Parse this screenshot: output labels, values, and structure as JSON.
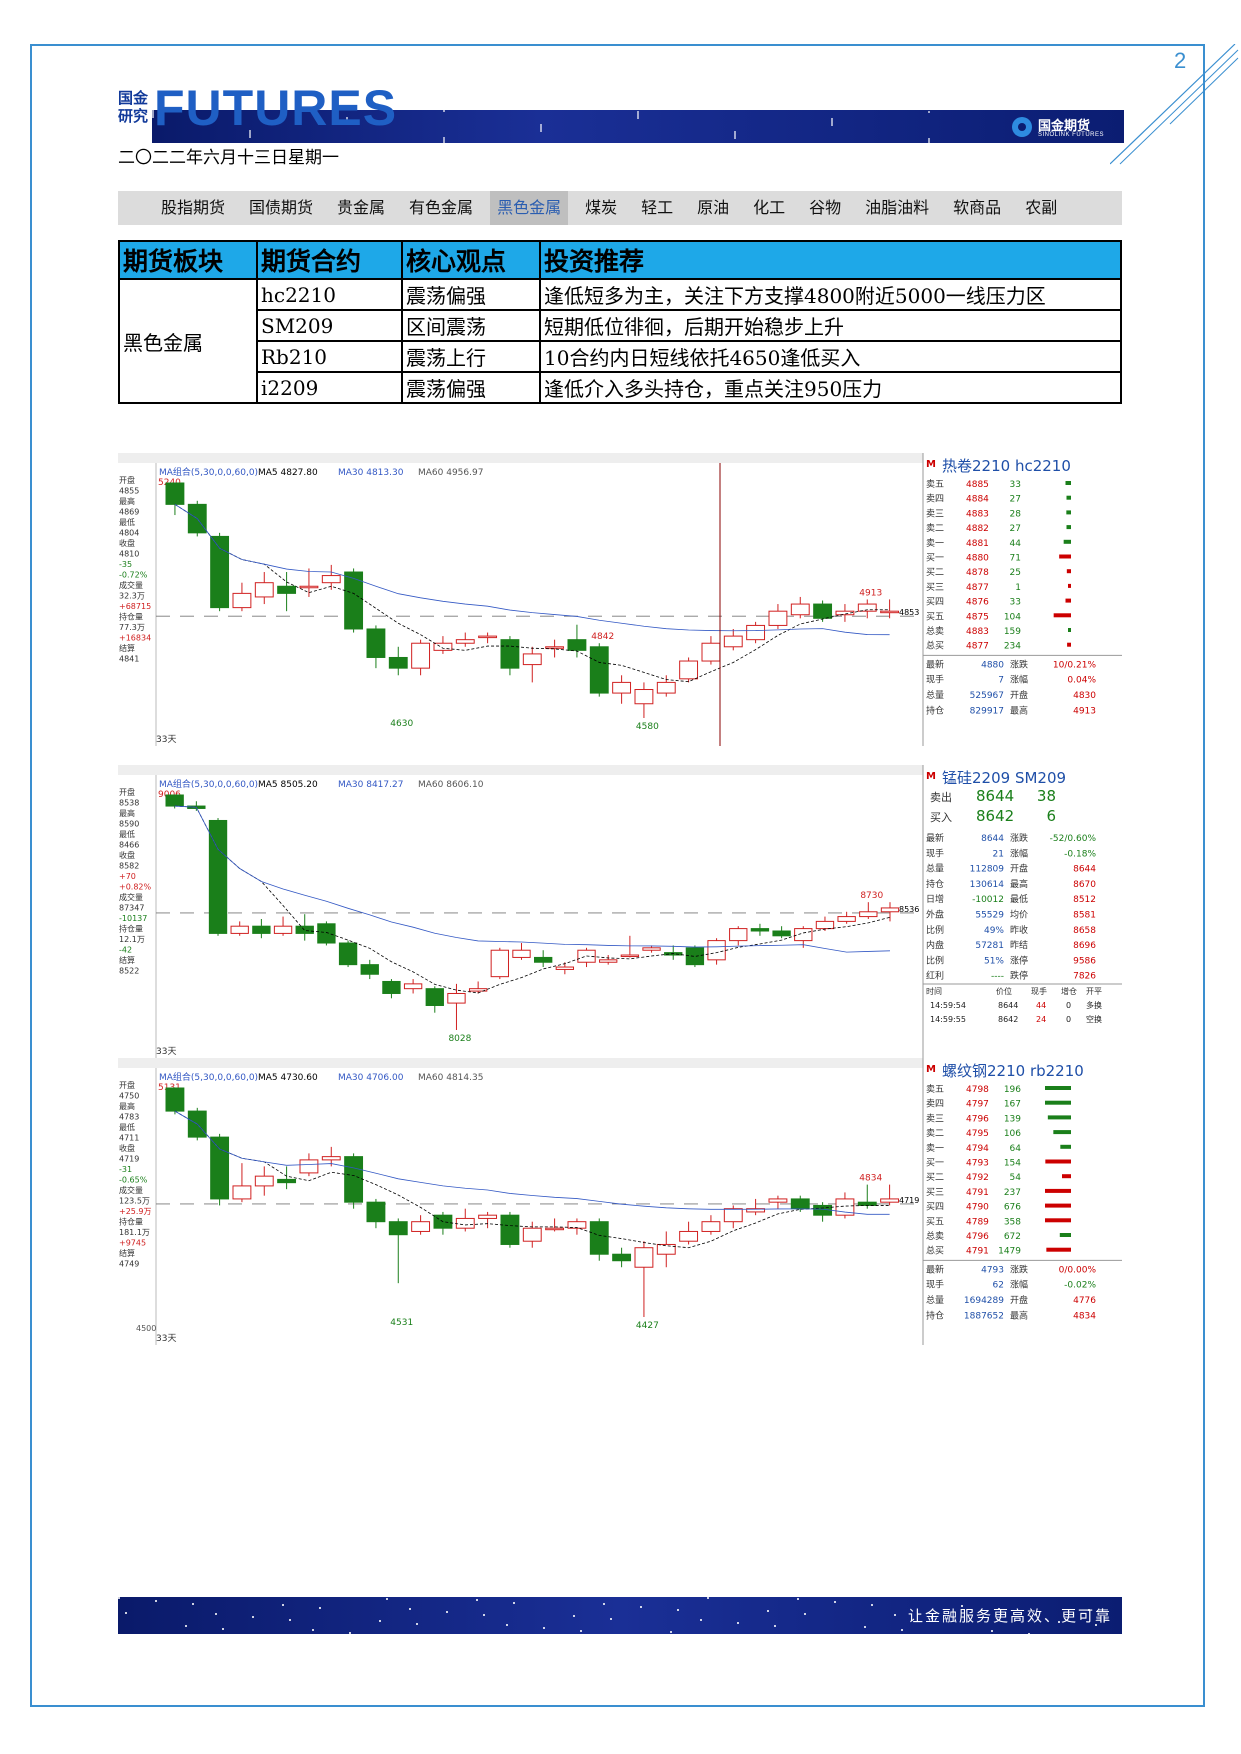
{
  "page_number": "2",
  "brand": {
    "cn_line1": "国金",
    "cn_line2": "研究",
    "en": "FUTURES"
  },
  "corp": {
    "name": "国金期货",
    "sub": "SINOLINK FUTURES"
  },
  "date": "二〇二二年六月十三日星期一",
  "tabs": [
    "股指期货",
    "国债期货",
    "贵金属",
    "有色金属",
    "黑色金属",
    "煤炭",
    "轻工",
    "原油",
    "化工",
    "谷物",
    "油脂油料",
    "软商品",
    "农副"
  ],
  "active_tab": "黑色金属",
  "view_table": {
    "headers": [
      "期货板块",
      "期货合约",
      "核心观点",
      "投资推荐"
    ],
    "sector": "黑色金属",
    "rows": [
      [
        "hc2210",
        "震荡偏强",
        "逢低短多为主，关注下方支撑4800附近5000一线压力区"
      ],
      [
        "SM209",
        "区间震荡",
        "短期低位徘徊，后期开始稳步上升"
      ],
      [
        "Rb210",
        "震荡上行",
        "10合约内日短线依托4650逢低买入"
      ],
      [
        "i2209",
        "震荡偏强",
        "逢低介入多头持仓，重点关注950压力"
      ]
    ]
  },
  "chart_data": [
    {
      "type": "candlestick",
      "title": "热卷2210 hc2210",
      "ma_line": "MA组合(5,30,0,0,60,0)",
      "ma": [
        "MA5 4827.80",
        "MA30 4813.30",
        "MA60 4956.97"
      ],
      "candles": [
        [
          5240,
          5180,
          5240,
          5150
        ],
        [
          5180,
          5100,
          5190,
          5090
        ],
        [
          5090,
          4890,
          5100,
          4880
        ],
        [
          4890,
          4930,
          4960,
          4880
        ],
        [
          4920,
          4960,
          4990,
          4900
        ],
        [
          4950,
          4930,
          4990,
          4880
        ],
        [
          4950,
          4950,
          5000,
          4920
        ],
        [
          4960,
          4980,
          5010,
          4940
        ],
        [
          4990,
          4830,
          5000,
          4820
        ],
        [
          4830,
          4750,
          4840,
          4720
        ],
        [
          4750,
          4720,
          4780,
          4700
        ],
        [
          4720,
          4790,
          4800,
          4700
        ],
        [
          4770,
          4790,
          4810,
          4760
        ],
        [
          4790,
          4800,
          4820,
          4780
        ],
        [
          4810,
          4810,
          4820,
          4790
        ],
        [
          4800,
          4720,
          4810,
          4700
        ],
        [
          4730,
          4760,
          4780,
          4680
        ],
        [
          4780,
          4780,
          4800,
          4750
        ],
        [
          4800,
          4770,
          4842,
          4750
        ],
        [
          4780,
          4650,
          4790,
          4640
        ],
        [
          4650,
          4680,
          4700,
          4620
        ],
        [
          4620,
          4660,
          4680,
          4580
        ],
        [
          4650,
          4680,
          4700,
          4640
        ],
        [
          4690,
          4740,
          4750,
          4680
        ],
        [
          4740,
          4790,
          4810,
          4730
        ],
        [
          4780,
          4810,
          4830,
          4770
        ],
        [
          4800,
          4840,
          4850,
          4790
        ],
        [
          4840,
          4880,
          4900,
          4830
        ],
        [
          4870,
          4900,
          4920,
          4860
        ],
        [
          4900,
          4860,
          4910,
          4850
        ],
        [
          4870,
          4880,
          4900,
          4850
        ],
        [
          4880,
          4900,
          4913,
          4860
        ],
        [
          4880,
          4880,
          4913,
          4860
        ]
      ],
      "low_label": "4580",
      "low2_label": "4630",
      "high_labels": [
        "4842",
        "4913"
      ],
      "right_axis_label": "4853",
      "left_axis": [
        "开盘",
        "4855",
        "最高",
        "4869",
        "最低",
        "4804",
        "收盘",
        "4810",
        "-35",
        "-0.72%",
        "成交量",
        "32.3万",
        "+68715",
        "持仓量",
        "77.3万",
        "+16834",
        "结算",
        "4841"
      ],
      "days": "33天",
      "top_value": "5240",
      "quotes": [
        [
          "卖五",
          "4885",
          "33"
        ],
        [
          "卖四",
          "4884",
          "27"
        ],
        [
          "卖三",
          "4883",
          "28"
        ],
        [
          "卖二",
          "4882",
          "27"
        ],
        [
          "卖一",
          "4881",
          "44"
        ],
        [
          "买一",
          "4880",
          "71"
        ],
        [
          "买二",
          "4878",
          "25"
        ],
        [
          "买三",
          "4877",
          "1"
        ],
        [
          "买四",
          "4876",
          "33"
        ],
        [
          "买五",
          "4875",
          "104"
        ],
        [
          "总卖",
          "4883",
          "159"
        ],
        [
          "总买",
          "4877",
          "234"
        ]
      ],
      "stats": [
        [
          "最新",
          "4880",
          "涨跌",
          "10/0.21%"
        ],
        [
          "现手",
          "7",
          "涨幅",
          "0.04%"
        ],
        [
          "总量",
          "525967",
          "开盘",
          "4830"
        ],
        [
          "持仓",
          "829917",
          "最高",
          "4913"
        ]
      ]
    },
    {
      "type": "candlestick",
      "title": "锰硅2209 SM209",
      "ma_line": "MA组合(5,30,0,0,60,0)",
      "ma": [
        "MA5 8505.20",
        "MA30 8417.27",
        "MA60 8606.10"
      ],
      "candles": [
        [
          9006,
          8960,
          9006,
          8950
        ],
        [
          8960,
          8950,
          8980,
          8940
        ],
        [
          8900,
          8430,
          8910,
          8420
        ],
        [
          8430,
          8460,
          8480,
          8420
        ],
        [
          8460,
          8430,
          8490,
          8410
        ],
        [
          8430,
          8460,
          8500,
          8420
        ],
        [
          8460,
          8430,
          8510,
          8400
        ],
        [
          8470,
          8390,
          8480,
          8380
        ],
        [
          8390,
          8300,
          8400,
          8290
        ],
        [
          8300,
          8260,
          8320,
          8240
        ],
        [
          8230,
          8180,
          8240,
          8160
        ],
        [
          8200,
          8220,
          8240,
          8180
        ],
        [
          8200,
          8130,
          8210,
          8100
        ],
        [
          8140,
          8180,
          8220,
          8028
        ],
        [
          8190,
          8200,
          8230,
          8180
        ],
        [
          8250,
          8360,
          8370,
          8240
        ],
        [
          8330,
          8360,
          8390,
          8320
        ],
        [
          8330,
          8310,
          8360,
          8290
        ],
        [
          8280,
          8290,
          8310,
          8260
        ],
        [
          8310,
          8360,
          8370,
          8290
        ],
        [
          8310,
          8320,
          8340,
          8300
        ],
        [
          8340,
          8340,
          8420,
          8330
        ],
        [
          8360,
          8370,
          8380,
          8350
        ],
        [
          8350,
          8340,
          8380,
          8320
        ],
        [
          8370,
          8300,
          8380,
          8290
        ],
        [
          8320,
          8400,
          8410,
          8300
        ],
        [
          8400,
          8450,
          8460,
          8380
        ],
        [
          8450,
          8440,
          8470,
          8420
        ],
        [
          8440,
          8420,
          8460,
          8410
        ],
        [
          8400,
          8450,
          8460,
          8370
        ],
        [
          8450,
          8480,
          8500,
          8440
        ],
        [
          8480,
          8500,
          8520,
          8470
        ],
        [
          8500,
          8520,
          8560,
          8490
        ],
        [
          8520,
          8536,
          8560,
          8480
        ]
      ],
      "low_label": "8028",
      "high_labels": [
        "8730"
      ],
      "right_axis_label": "8536",
      "left_axis": [
        "开盘",
        "8538",
        "最高",
        "8590",
        "最低",
        "8466",
        "收盘",
        "8582",
        "+70",
        "+0.82%",
        "成交量",
        "87347",
        "-10137",
        "持仓量",
        "12.1万",
        "-42",
        "结算",
        "8522"
      ],
      "days": "33天",
      "top_value": "9006",
      "quotes": [
        [
          "卖出",
          "8644",
          "38"
        ],
        [
          "买入",
          "8642",
          "6"
        ]
      ],
      "stats": [
        [
          "最新",
          "8644",
          "涨跌",
          "-52/0.60%"
        ],
        [
          "现手",
          "21",
          "涨幅",
          "-0.18%"
        ],
        [
          "总量",
          "112809",
          "开盘",
          "8644"
        ],
        [
          "持仓",
          "130614",
          "最高",
          "8670"
        ],
        [
          "日增",
          "-10012",
          "最低",
          "8512"
        ],
        [
          "外盘",
          "55529",
          "均价",
          "8581"
        ],
        [
          "比例",
          "49%",
          "昨收",
          "8658"
        ],
        [
          "内盘",
          "57281",
          "昨结",
          "8696"
        ],
        [
          "比例",
          "51%",
          "涨停",
          "9586"
        ],
        [
          "红利",
          "----",
          "跌停",
          "7826"
        ]
      ],
      "ticks_header": [
        "时间",
        "价位",
        "现手",
        "增仓",
        "开平"
      ],
      "ticks": [
        [
          "14:59:54",
          "8644",
          "44",
          "0",
          "多换"
        ],
        [
          "14:59:55",
          "8642",
          "24",
          "0",
          "空换"
        ]
      ]
    },
    {
      "type": "candlestick",
      "title": "螺纹钢2210 rb2210",
      "ma_line": "MA组合(5,30,0,0,60,0)",
      "ma": [
        "MA5 4730.60",
        "MA30 4706.00",
        "MA60 4814.35"
      ],
      "candles": [
        [
          5131,
          5060,
          5131,
          5050
        ],
        [
          5060,
          4980,
          5070,
          4970
        ],
        [
          4980,
          4790,
          4990,
          4770
        ],
        [
          4790,
          4830,
          4900,
          4780
        ],
        [
          4830,
          4860,
          4890,
          4800
        ],
        [
          4850,
          4840,
          4890,
          4820
        ],
        [
          4870,
          4910,
          4930,
          4860
        ],
        [
          4910,
          4920,
          4950,
          4890
        ],
        [
          4920,
          4780,
          4930,
          4760
        ],
        [
          4780,
          4720,
          4790,
          4700
        ],
        [
          4720,
          4680,
          4730,
          4531
        ],
        [
          4690,
          4720,
          4740,
          4680
        ],
        [
          4740,
          4700,
          4750,
          4680
        ],
        [
          4700,
          4730,
          4760,
          4690
        ],
        [
          4730,
          4740,
          4750,
          4700
        ],
        [
          4740,
          4650,
          4750,
          4640
        ],
        [
          4660,
          4700,
          4720,
          4640
        ],
        [
          4700,
          4700,
          4730,
          4690
        ],
        [
          4700,
          4720,
          4730,
          4680
        ],
        [
          4720,
          4620,
          4730,
          4600
        ],
        [
          4620,
          4600,
          4640,
          4580
        ],
        [
          4580,
          4640,
          4660,
          4427
        ],
        [
          4620,
          4650,
          4690,
          4580
        ],
        [
          4660,
          4690,
          4720,
          4650
        ],
        [
          4690,
          4720,
          4740,
          4680
        ],
        [
          4720,
          4760,
          4770,
          4700
        ],
        [
          4750,
          4760,
          4790,
          4740
        ],
        [
          4780,
          4790,
          4800,
          4760
        ],
        [
          4790,
          4760,
          4800,
          4750
        ],
        [
          4770,
          4740,
          4780,
          4720
        ],
        [
          4740,
          4790,
          4810,
          4730
        ],
        [
          4780,
          4770,
          4834,
          4760
        ],
        [
          4780,
          4790,
          4834,
          4770
        ]
      ],
      "low_label": "4427",
      "low2_label": "4531",
      "high_labels": [
        "4834"
      ],
      "right_axis_label": "4719",
      "left_axis": [
        "开盘",
        "4750",
        "最高",
        "4783",
        "最低",
        "4711",
        "收盘",
        "4719",
        "-31",
        "-0.65%",
        "成交量",
        "123.5万",
        "+25.9万",
        "持仓量",
        "181.1万",
        "+9745",
        "结算",
        "4749"
      ],
      "axis_tick": "4500",
      "days": "33天",
      "top_value": "5131",
      "quotes": [
        [
          "卖五",
          "4798",
          "196"
        ],
        [
          "卖四",
          "4797",
          "167"
        ],
        [
          "卖三",
          "4796",
          "139"
        ],
        [
          "卖二",
          "4795",
          "106"
        ],
        [
          "卖一",
          "4794",
          "64"
        ],
        [
          "买一",
          "4793",
          "154"
        ],
        [
          "买二",
          "4792",
          "54"
        ],
        [
          "买三",
          "4791",
          "237"
        ],
        [
          "买四",
          "4790",
          "676"
        ],
        [
          "买五",
          "4789",
          "358"
        ],
        [
          "总卖",
          "4796",
          "672"
        ],
        [
          "总买",
          "4791",
          "1479"
        ]
      ],
      "stats": [
        [
          "最新",
          "4793",
          "涨跌",
          "0/0.00%"
        ],
        [
          "现手",
          "62",
          "涨幅",
          "-0.02%"
        ],
        [
          "总量",
          "1694289",
          "开盘",
          "4776"
        ],
        [
          "持仓",
          "1887652",
          "最高",
          "4834"
        ]
      ]
    }
  ],
  "footer": "让金融服务更高效、更可靠",
  "colors": {
    "frame": "#3a8fd0",
    "table_header": "#1ea8e8",
    "up": "#d02020",
    "down": "#1a7f1a",
    "banner": "#0b1d72"
  }
}
